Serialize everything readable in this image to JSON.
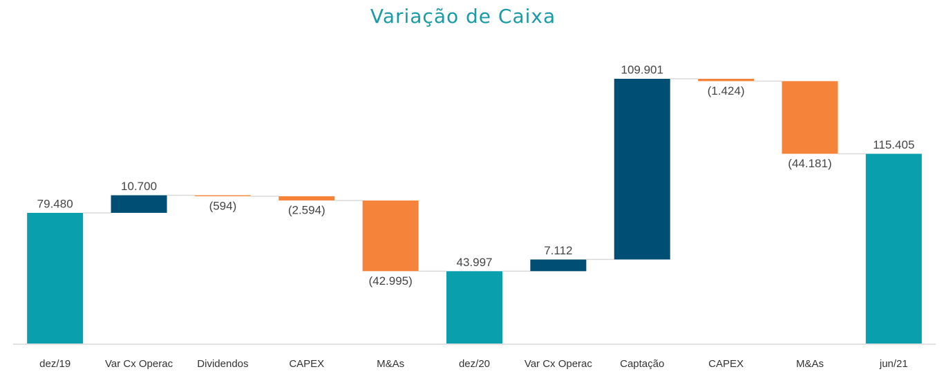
{
  "chart_data": {
    "type": "waterfall",
    "title": "Variação de Caixa",
    "categories": [
      "dez/19",
      "Var Cx Operac",
      "Dividendos",
      "CAPEX",
      "M&As",
      "dez/20",
      "Var Cx Operac",
      "Captação",
      "CAPEX",
      "M&As",
      "jun/21"
    ],
    "values": [
      79480,
      10700,
      -594,
      -2594,
      -42995,
      43997,
      7112,
      109901,
      -1424,
      -44181,
      115405
    ],
    "value_labels": [
      "79.480",
      "10.700",
      "(594)",
      "(2.594)",
      "(42.995)",
      "43.997",
      "7.112",
      "109.901",
      "(1.424)",
      "(44.181)",
      "115.405"
    ],
    "is_total": [
      true,
      false,
      false,
      false,
      false,
      true,
      false,
      false,
      false,
      false,
      true
    ],
    "colors": [
      "#0a9fac",
      "#004e73",
      "#f5843a",
      "#f5843a",
      "#f5843a",
      "#0a9fac",
      "#004e73",
      "#004e73",
      "#f5843a",
      "#f5843a",
      "#0a9fac"
    ]
  }
}
